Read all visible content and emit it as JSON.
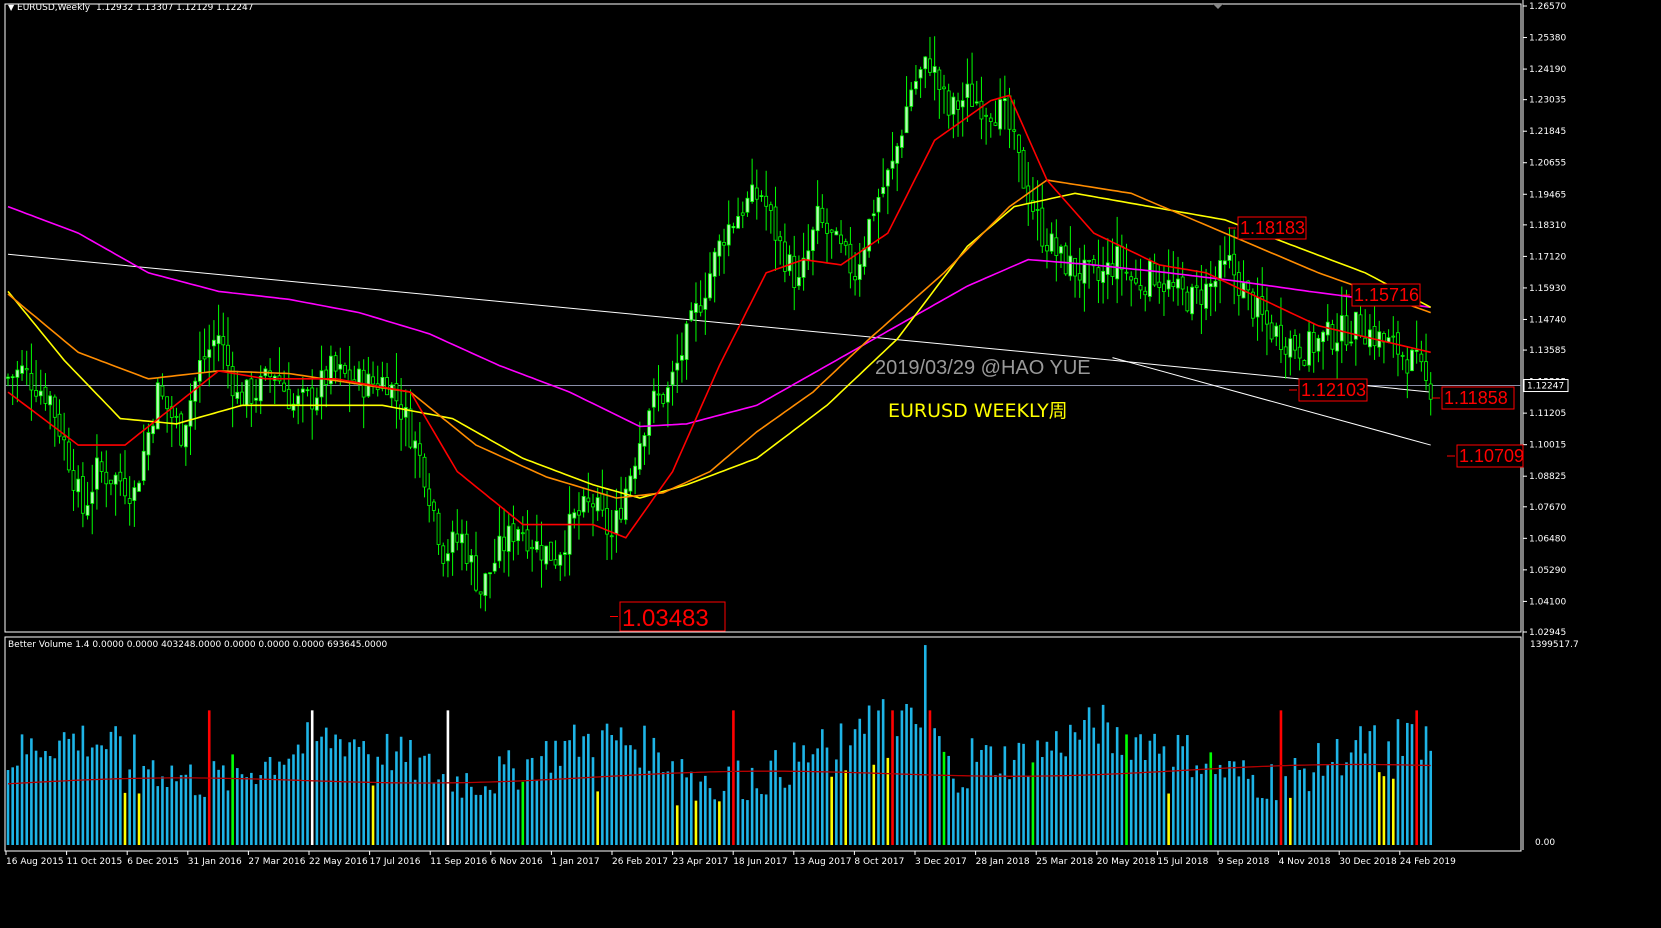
{
  "header": {
    "symbol": "EURUSD,Weekly",
    "ohlc": "1.12932 1.13307 1.12129 1.12247",
    "arrow": "▼"
  },
  "indicator_header": "Better Volume 1.4 0.0000 0.0000 403248.0000 0.0000 0.0000 0.0000 693645.0000",
  "volume_axis": {
    "top": "1399517.7",
    "bottom": "0.00"
  },
  "watermark": {
    "line1": "2019/03/29 @HAO YUE",
    "line2": "EURUSD WEEKLY周"
  },
  "price_axis": {
    "ticks": [
      "1.26570",
      "1.25380",
      "1.24190",
      "1.23035",
      "1.21845",
      "1.20655",
      "1.19465",
      "1.18310",
      "1.17120",
      "1.15930",
      "1.14740",
      "1.13585",
      "1.12395",
      "1.11205",
      "1.10015",
      "1.08825",
      "1.07670",
      "1.06480",
      "1.05290",
      "1.04100",
      "1.02945"
    ],
    "current": "1.12247"
  },
  "time_axis": [
    "16 Aug 2015",
    "11 Oct 2015",
    "6 Dec 2015",
    "31 Jan 2016",
    "27 Mar 2016",
    "22 May 2016",
    "17 Jul 2016",
    "11 Sep 2016",
    "6 Nov 2016",
    "1 Jan 2017",
    "26 Feb 2017",
    "23 Apr 2017",
    "18 Jun 2017",
    "13 Aug 2017",
    "8 Oct 2017",
    "3 Dec 2017",
    "28 Jan 2018",
    "25 Mar 2018",
    "20 May 2018",
    "15 Jul 2018",
    "9 Sep 2018",
    "4 Nov 2018",
    "30 Dec 2018",
    "24 Feb 2019"
  ],
  "labels": [
    {
      "text": "1.03483",
      "color": "#ff0000"
    },
    {
      "text": "1.18183",
      "color": "#ff0000"
    },
    {
      "text": "1.15716",
      "color": "#ff0000"
    },
    {
      "text": "1.12103",
      "color": "#ff0000"
    },
    {
      "text": "1.11858",
      "color": "#ff0000"
    },
    {
      "text": "1.10709",
      "color": "#ff0000"
    }
  ],
  "colors": {
    "background": "#000000",
    "bull": "#b8f5b8",
    "bear": "#00ff00",
    "ma_red": "#ff0000",
    "ma_orange": "#ff8c00",
    "ma_yellow": "#ffff00",
    "ma_magenta": "#ff00ff",
    "trendline": "#ffffff",
    "volume_avg": "#b30000"
  },
  "chart_data": {
    "type": "candlestick",
    "ylim": [
      1.02945,
      1.2657
    ],
    "anchors": [
      [
        0,
        1.125
      ],
      [
        4,
        1.128
      ],
      [
        10,
        1.118
      ],
      [
        14,
        1.095
      ],
      [
        17,
        1.075
      ],
      [
        20,
        1.09
      ],
      [
        25,
        1.087
      ],
      [
        28,
        1.082
      ],
      [
        33,
        1.12
      ],
      [
        38,
        1.105
      ],
      [
        42,
        1.13
      ],
      [
        46,
        1.142
      ],
      [
        50,
        1.118
      ],
      [
        54,
        1.12
      ],
      [
        58,
        1.128
      ],
      [
        62,
        1.115
      ],
      [
        66,
        1.118
      ],
      [
        70,
        1.128
      ],
      [
        74,
        1.125
      ],
      [
        78,
        1.123
      ],
      [
        82,
        1.125
      ],
      [
        86,
        1.11
      ],
      [
        90,
        1.09
      ],
      [
        94,
        1.06
      ],
      [
        98,
        1.065
      ],
      [
        102,
        1.045
      ],
      [
        106,
        1.06
      ],
      [
        110,
        1.07
      ],
      [
        114,
        1.062
      ],
      [
        118,
        1.058
      ],
      [
        122,
        1.072
      ],
      [
        126,
        1.078
      ],
      [
        130,
        1.065
      ],
      [
        134,
        1.09
      ],
      [
        138,
        1.115
      ],
      [
        142,
        1.12
      ],
      [
        146,
        1.14
      ],
      [
        150,
        1.16
      ],
      [
        154,
        1.18
      ],
      [
        158,
        1.19
      ],
      [
        162,
        1.195
      ],
      [
        166,
        1.175
      ],
      [
        170,
        1.16
      ],
      [
        174,
        1.185
      ],
      [
        178,
        1.175
      ],
      [
        182,
        1.165
      ],
      [
        186,
        1.19
      ],
      [
        190,
        1.205
      ],
      [
        194,
        1.235
      ],
      [
        198,
        1.245
      ],
      [
        202,
        1.225
      ],
      [
        206,
        1.232
      ],
      [
        210,
        1.228
      ],
      [
        214,
        1.225
      ],
      [
        218,
        1.2
      ],
      [
        222,
        1.18
      ],
      [
        226,
        1.17
      ],
      [
        230,
        1.165
      ],
      [
        234,
        1.162
      ],
      [
        238,
        1.17
      ],
      [
        242,
        1.16
      ],
      [
        246,
        1.165
      ],
      [
        250,
        1.158
      ],
      [
        254,
        1.155
      ],
      [
        258,
        1.16
      ],
      [
        262,
        1.168
      ],
      [
        266,
        1.155
      ],
      [
        270,
        1.145
      ],
      [
        274,
        1.14
      ],
      [
        278,
        1.136
      ],
      [
        282,
        1.14
      ],
      [
        286,
        1.143
      ],
      [
        290,
        1.145
      ],
      [
        294,
        1.14
      ],
      [
        298,
        1.136
      ],
      [
        302,
        1.13
      ],
      [
        304,
        1.1225
      ]
    ],
    "ma_red": [
      [
        0,
        1.12
      ],
      [
        15,
        1.1
      ],
      [
        25,
        1.1
      ],
      [
        45,
        1.128
      ],
      [
        55,
        1.125
      ],
      [
        70,
        1.125
      ],
      [
        86,
        1.12
      ],
      [
        96,
        1.09
      ],
      [
        110,
        1.07
      ],
      [
        125,
        1.07
      ],
      [
        132,
        1.065
      ],
      [
        142,
        1.09
      ],
      [
        152,
        1.13
      ],
      [
        162,
        1.165
      ],
      [
        170,
        1.17
      ],
      [
        178,
        1.168
      ],
      [
        188,
        1.18
      ],
      [
        198,
        1.215
      ],
      [
        210,
        1.23
      ],
      [
        214,
        1.232
      ],
      [
        222,
        1.2
      ],
      [
        232,
        1.18
      ],
      [
        246,
        1.168
      ],
      [
        256,
        1.165
      ],
      [
        268,
        1.155
      ],
      [
        280,
        1.145
      ],
      [
        292,
        1.14
      ],
      [
        304,
        1.135
      ]
    ],
    "ma_orange": [
      [
        0,
        1.157
      ],
      [
        15,
        1.135
      ],
      [
        30,
        1.125
      ],
      [
        45,
        1.128
      ],
      [
        60,
        1.127
      ],
      [
        75,
        1.123
      ],
      [
        86,
        1.12
      ],
      [
        100,
        1.1
      ],
      [
        115,
        1.088
      ],
      [
        130,
        1.08
      ],
      [
        140,
        1.082
      ],
      [
        150,
        1.09
      ],
      [
        160,
        1.105
      ],
      [
        172,
        1.12
      ],
      [
        184,
        1.14
      ],
      [
        200,
        1.165
      ],
      [
        214,
        1.19
      ],
      [
        222,
        1.2
      ],
      [
        240,
        1.195
      ],
      [
        260,
        1.18
      ],
      [
        280,
        1.165
      ],
      [
        304,
        1.15
      ]
    ],
    "ma_yellow": [
      [
        0,
        1.158
      ],
      [
        12,
        1.132
      ],
      [
        24,
        1.11
      ],
      [
        36,
        1.108
      ],
      [
        50,
        1.115
      ],
      [
        65,
        1.115
      ],
      [
        80,
        1.115
      ],
      [
        95,
        1.11
      ],
      [
        110,
        1.095
      ],
      [
        125,
        1.085
      ],
      [
        135,
        1.08
      ],
      [
        145,
        1.085
      ],
      [
        160,
        1.095
      ],
      [
        175,
        1.115
      ],
      [
        190,
        1.14
      ],
      [
        205,
        1.175
      ],
      [
        215,
        1.19
      ],
      [
        228,
        1.195
      ],
      [
        244,
        1.19
      ],
      [
        260,
        1.185
      ],
      [
        275,
        1.175
      ],
      [
        290,
        1.165
      ],
      [
        304,
        1.152
      ]
    ],
    "ma_magenta": [
      [
        0,
        1.19
      ],
      [
        15,
        1.18
      ],
      [
        30,
        1.165
      ],
      [
        45,
        1.158
      ],
      [
        60,
        1.155
      ],
      [
        75,
        1.15
      ],
      [
        90,
        1.142
      ],
      [
        105,
        1.13
      ],
      [
        120,
        1.12
      ],
      [
        135,
        1.107
      ],
      [
        145,
        1.108
      ],
      [
        160,
        1.115
      ],
      [
        175,
        1.13
      ],
      [
        190,
        1.145
      ],
      [
        205,
        1.16
      ],
      [
        218,
        1.17
      ],
      [
        232,
        1.168
      ],
      [
        248,
        1.165
      ],
      [
        262,
        1.162
      ],
      [
        278,
        1.158
      ],
      [
        304,
        1.152
      ]
    ],
    "trendlines": [
      [
        [
          0,
          1.172
        ],
        [
          236,
          1.132
        ]
      ],
      [
        [
          236,
          1.132
        ],
        [
          304,
          1.12
        ]
      ],
      [
        [
          236,
          1.133
        ],
        [
          304,
          1.1
        ]
      ]
    ],
    "volume": {
      "ylim": [
        0,
        1399517.7
      ],
      "colors": {
        "normal": "#1eb4e6",
        "climax": "#ff0000",
        "churn": "#00ff00",
        "low": "#ffff00",
        "high": "#ffffff"
      }
    }
  }
}
